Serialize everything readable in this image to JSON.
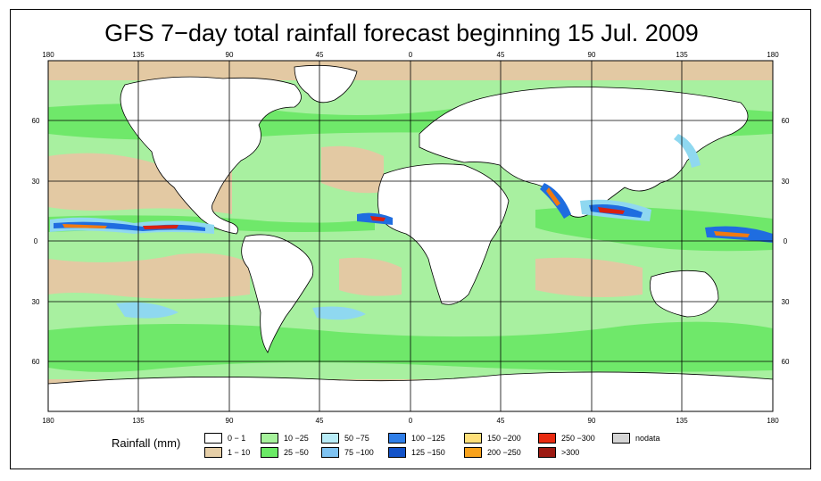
{
  "title": "GFS 7−day total rainfall forecast beginning 15 Jul. 2009",
  "map": {
    "lon_labels": [
      "180",
      "135",
      "90",
      "45",
      "0",
      "45",
      "90",
      "135",
      "180"
    ],
    "lat_labels_left": [
      "60",
      "30",
      "0",
      "30",
      "60"
    ],
    "lat_labels_right": [
      "60",
      "30",
      "0",
      "30",
      "60"
    ],
    "colors": {
      "ocean_low": "#e3c9a3",
      "ocean_mid": "#a8f0a0",
      "ocean_high": "#6fe86a",
      "land": "#ffffff",
      "heavy1": "#8fd8f0",
      "heavy2": "#1f6de0",
      "extreme1": "#f07a10",
      "extreme2": "#d82010"
    }
  },
  "legend": {
    "title": "Rainfall (mm)",
    "items": [
      {
        "label": "0 − 1",
        "color": "#ffffff"
      },
      {
        "label": "1 − 10",
        "color": "#e6cfa8"
      },
      {
        "label": "10 −25",
        "color": "#a6f29b"
      },
      {
        "label": "25 −50",
        "color": "#6bea66"
      },
      {
        "label": "50 −75",
        "color": "#b8ecf8"
      },
      {
        "label": "75 −100",
        "color": "#7fc3f2"
      },
      {
        "label": "100 −125",
        "color": "#2f7ee8"
      },
      {
        "label": "125 −150",
        "color": "#1252c8"
      },
      {
        "label": "150 −200",
        "color": "#ffe07a"
      },
      {
        "label": "200 −250",
        "color": "#f8a21c"
      },
      {
        "label": "250 −300",
        "color": "#e82a10"
      },
      {
        "label": ">300",
        "color": "#9c1a12"
      },
      {
        "label": "nodata",
        "color": "#d4d4d4"
      }
    ]
  }
}
